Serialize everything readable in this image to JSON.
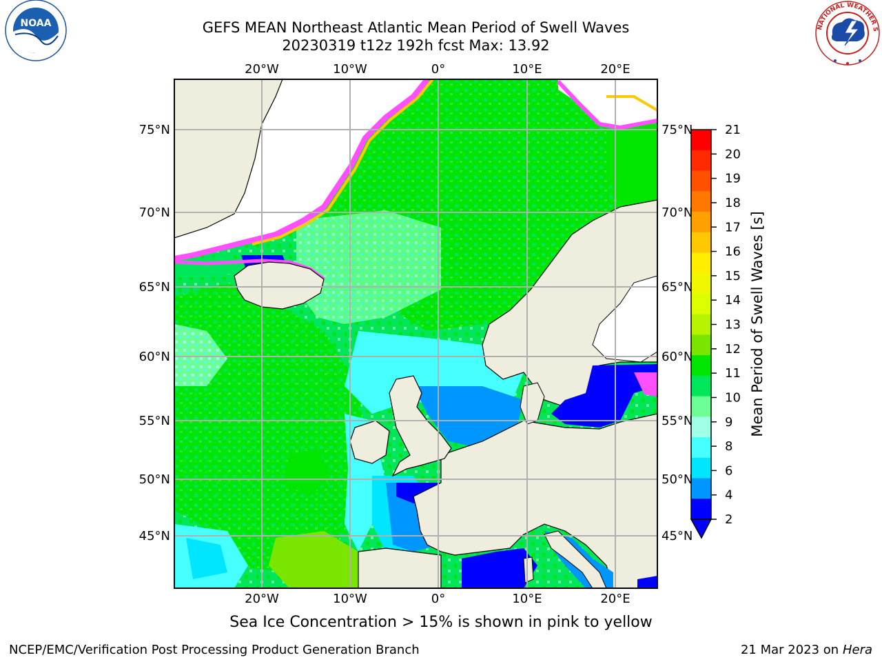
{
  "header": {
    "title_line1": "GEFS MEAN Northeast Atlantic Mean Period of Swell Waves",
    "title_line2": "20230319 t12z 192h fcst   Max: 13.92"
  },
  "logos": {
    "left": {
      "name": "noaa-logo",
      "text": "NOAA"
    },
    "right": {
      "name": "nws-logo",
      "text": "NATIONAL WEATHER SERVICE"
    }
  },
  "map": {
    "lon_labels": [
      "20°W",
      "10°W",
      "0°",
      "10°E",
      "20°E"
    ],
    "lat_labels_left": [
      "75°N",
      "70°N",
      "65°N",
      "60°N",
      "55°N",
      "50°N",
      "45°N"
    ],
    "lat_labels_right": [
      "75°N",
      "70°N",
      "65°N",
      "60°N",
      "55°N",
      "50°N",
      "45°N"
    ],
    "colors": {
      "land": "#efedde",
      "ice_white": "#ffffff",
      "grid": "#b0b0b0"
    }
  },
  "colorbar": {
    "label": "Mean Period of Swell Waves [s]",
    "ticks": [
      "21",
      "20",
      "19",
      "18",
      "17",
      "16",
      "15",
      "14",
      "13",
      "12",
      "11",
      "10",
      "9",
      "8",
      "6",
      "4",
      "2"
    ],
    "colors_top_to_bottom": [
      "#ff0000",
      "#ff2a00",
      "#ff5000",
      "#ff7800",
      "#ff9f00",
      "#ffc800",
      "#ffee00",
      "#f0f800",
      "#dcff00",
      "#b8f400",
      "#7ae600",
      "#00e600",
      "#00e65a",
      "#6dff96",
      "#a0ffe6",
      "#46ffff",
      "#00e6ff",
      "#0096ff",
      "#0000ff"
    ]
  },
  "footer": {
    "note": "Sea Ice Concentration > 15% is shown in pink to yellow",
    "credit_left": "NCEP/EMC/Verification Post Processing Product Generation Branch",
    "credit_right_date": "21 Mar 2023 on",
    "credit_right_host": "Hera"
  }
}
